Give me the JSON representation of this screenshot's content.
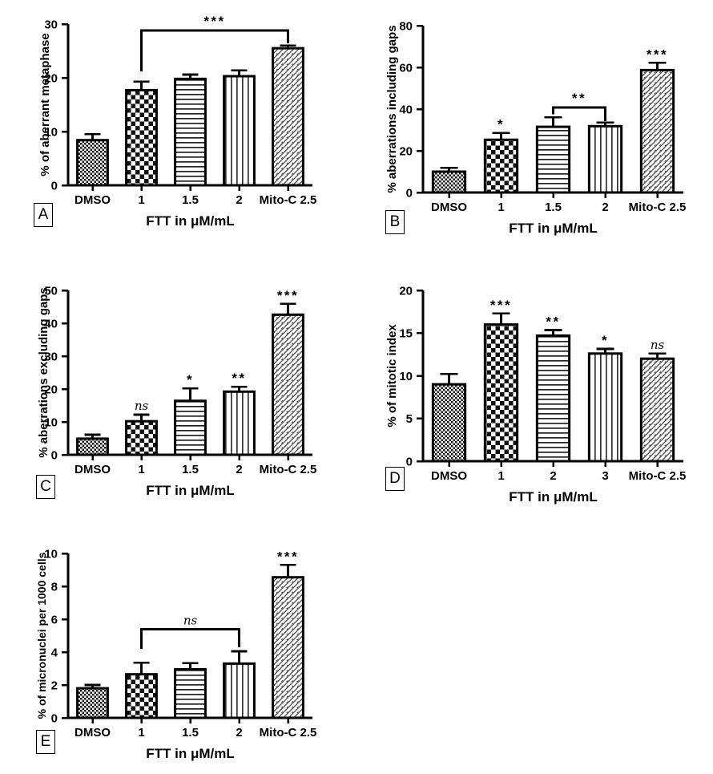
{
  "colors": {
    "ink": "#000000",
    "background": "#ffffff",
    "hatch_line": "#4a4a4a"
  },
  "figure": {
    "xlabel_shared": "FTT in μM/mL"
  },
  "chart_data": [
    {
      "id": "A",
      "panel_label": "A",
      "type": "bar",
      "ylabel": "% of aberrant metaphase",
      "xlabel": "FTT in μM/mL",
      "ylim": [
        0,
        30
      ],
      "yticks": [
        0,
        10,
        20,
        30
      ],
      "grid": false,
      "legend": null,
      "categories": [
        "DMSO",
        "1",
        "1.5",
        "2",
        "Mito-C 2.5"
      ],
      "values": [
        8.4,
        17.7,
        19.8,
        20.3,
        25.5
      ],
      "errors": [
        1.1,
        1.6,
        0.8,
        1.1,
        0.5
      ],
      "bar_patterns": [
        "fine-checker",
        "checker",
        "hlines",
        "vlines",
        "diag"
      ],
      "annotations": [
        "",
        "",
        "",
        "",
        ""
      ],
      "brackets": [
        {
          "from": 1,
          "to": 4,
          "label": "***",
          "y": 28.8,
          "drop_from": 21.2,
          "drop_to": 26.4
        }
      ]
    },
    {
      "id": "B",
      "panel_label": "B",
      "type": "bar",
      "ylabel": "% aberrations including gaps",
      "xlabel": "FTT in μM/mL",
      "ylim": [
        0,
        80
      ],
      "yticks": [
        0,
        20,
        40,
        60,
        80
      ],
      "grid": false,
      "legend": null,
      "categories": [
        "DMSO",
        "1",
        "1.5",
        "2",
        "Mito-C 2.5"
      ],
      "values": [
        10.0,
        25.3,
        31.5,
        31.8,
        58.7
      ],
      "errors": [
        1.8,
        3.3,
        4.5,
        1.7,
        3.5
      ],
      "bar_patterns": [
        "fine-checker",
        "checker",
        "hlines",
        "vlines",
        "diag"
      ],
      "annotations": [
        "",
        "*",
        "",
        "",
        "***"
      ],
      "brackets": [
        {
          "from": 2,
          "to": 3,
          "label": "**",
          "y": 40.8,
          "drop_from": 37.5,
          "drop_to": 34.3
        }
      ]
    },
    {
      "id": "C",
      "panel_label": "C",
      "type": "bar",
      "ylabel": "% aberrations excluding gaps",
      "xlabel": "FTT in μM/mL",
      "ylim": [
        0,
        50
      ],
      "yticks": [
        0,
        10,
        20,
        30,
        40,
        50
      ],
      "grid": false,
      "legend": null,
      "categories": [
        "DMSO",
        "1",
        "1.5",
        "2",
        "Mito-C 2.5"
      ],
      "values": [
        4.9,
        10.2,
        16.4,
        19.2,
        42.6
      ],
      "errors": [
        1.2,
        2.0,
        3.8,
        1.5,
        3.3
      ],
      "bar_patterns": [
        "fine-checker",
        "checker",
        "hlines",
        "vlines",
        "diag"
      ],
      "annotations": [
        "",
        "ns",
        "*",
        "**",
        "***"
      ],
      "brackets": []
    },
    {
      "id": "D",
      "panel_label": "D",
      "type": "bar",
      "ylabel": "% of mitotic index",
      "xlabel": "FTT in μM/mL",
      "ylim": [
        0,
        20
      ],
      "yticks": [
        0,
        5,
        10,
        15,
        20
      ],
      "grid": false,
      "legend": null,
      "categories": [
        "DMSO",
        "1",
        "2",
        "3",
        "Mito-C 2.5"
      ],
      "values": [
        9.0,
        16.0,
        14.7,
        12.6,
        12.0
      ],
      "errors": [
        1.2,
        1.3,
        0.65,
        0.55,
        0.6
      ],
      "bar_patterns": [
        "fine-checker",
        "checker",
        "hlines",
        "vlines",
        "diag"
      ],
      "annotations": [
        "",
        "***",
        "**",
        "*",
        "ns"
      ],
      "brackets": []
    },
    {
      "id": "E",
      "panel_label": "E",
      "type": "bar",
      "ylabel": "% of micronuclei per 1000 cells",
      "xlabel": "FTT in μM/mL",
      "ylim": [
        0,
        10
      ],
      "yticks": [
        0,
        2,
        4,
        6,
        8,
        10
      ],
      "grid": false,
      "legend": null,
      "categories": [
        "DMSO",
        "1",
        "1.5",
        "2",
        "Mito-C 2.5"
      ],
      "values": [
        1.8,
        2.65,
        2.95,
        3.3,
        8.55
      ],
      "errors": [
        0.2,
        0.7,
        0.38,
        0.75,
        0.75
      ],
      "bar_patterns": [
        "fine-checker",
        "checker",
        "hlines",
        "vlines",
        "diag"
      ],
      "annotations": [
        "",
        "",
        "",
        "",
        "***"
      ],
      "brackets": [
        {
          "from": 1,
          "to": 3,
          "label": "ns",
          "y": 5.4,
          "drop_from": 4.2,
          "drop_to": 4.3
        }
      ]
    }
  ]
}
